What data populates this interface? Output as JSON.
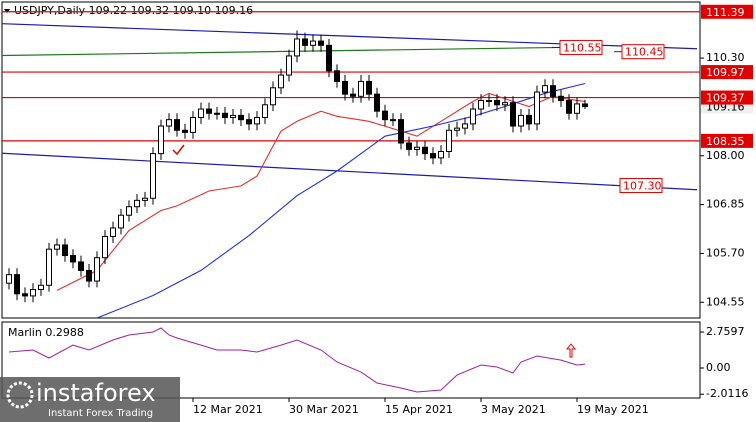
{
  "chart_data": [
    {
      "type": "candlestick",
      "title": "USDJPY,Daily  109.22 109.32 109.10 109.16",
      "categories": [
        null,
        null,
        null,
        null,
        null,
        null,
        null,
        null,
        null,
        null,
        null,
        null,
        null,
        null,
        null,
        null,
        null,
        null,
        null,
        null,
        null,
        null,
        null,
        "12 Mar 2021",
        null,
        null,
        null,
        null,
        null,
        null,
        null,
        null,
        null,
        null,
        null,
        "30 Mar 2021",
        null,
        null,
        null,
        null,
        null,
        null,
        null,
        null,
        null,
        null,
        null,
        "15 Apr 2021",
        null,
        null,
        null,
        null,
        null,
        null,
        null,
        null,
        null,
        null,
        null,
        "3 May 2021",
        null,
        null,
        null,
        null,
        null,
        null,
        null,
        null,
        null,
        null,
        null,
        "19 May 2021",
        null
      ],
      "open": [
        105.0,
        105.2,
        104.75,
        104.7,
        104.85,
        104.95,
        105.8,
        105.9,
        105.65,
        105.5,
        105.3,
        105.05,
        105.6,
        106.1,
        106.3,
        106.6,
        106.8,
        106.95,
        107.0,
        108.05,
        108.7,
        108.85,
        108.6,
        108.55,
        108.9,
        109.1,
        109.0,
        109.0,
        108.9,
        108.95,
        108.85,
        108.75,
        108.9,
        109.2,
        109.6,
        109.9,
        110.35,
        110.75,
        110.6,
        110.7,
        110.6,
        110.0,
        109.75,
        109.45,
        109.4,
        109.75,
        109.45,
        109.05,
        108.85,
        108.85,
        108.3,
        108.15,
        108.2,
        108.05,
        107.95,
        108.1,
        108.6,
        108.65,
        108.75,
        109.1,
        109.3,
        109.3,
        109.2,
        109.25,
        108.7,
        108.95,
        108.75,
        109.5,
        109.65,
        109.4,
        109.3,
        109.0,
        109.22
      ],
      "high": [
        105.35,
        105.35,
        104.9,
        105.0,
        105.1,
        105.95,
        106.05,
        106.05,
        105.8,
        105.65,
        105.45,
        105.75,
        106.25,
        106.45,
        106.75,
        106.95,
        107.1,
        107.15,
        108.2,
        108.85,
        109.0,
        109.0,
        108.75,
        109.05,
        109.25,
        109.25,
        109.15,
        109.15,
        109.1,
        109.1,
        109.0,
        109.05,
        109.35,
        109.75,
        110.05,
        110.5,
        110.95,
        110.9,
        110.85,
        110.85,
        110.75,
        110.15,
        109.9,
        109.6,
        109.9,
        109.9,
        109.6,
        109.2,
        109.0,
        109.0,
        108.45,
        108.35,
        108.35,
        108.2,
        108.25,
        108.75,
        108.8,
        108.9,
        109.25,
        109.45,
        109.45,
        109.45,
        109.4,
        109.4,
        109.1,
        109.1,
        109.65,
        109.8,
        109.8,
        109.55,
        109.45,
        109.37,
        109.32
      ],
      "low": [
        104.85,
        104.6,
        104.55,
        104.55,
        104.7,
        104.8,
        105.65,
        105.5,
        105.35,
        105.15,
        104.9,
        104.9,
        105.45,
        105.95,
        106.15,
        106.45,
        106.65,
        106.8,
        106.85,
        107.9,
        108.55,
        108.45,
        108.4,
        108.4,
        108.75,
        108.85,
        108.85,
        108.75,
        108.75,
        108.7,
        108.6,
        108.6,
        108.75,
        109.05,
        109.45,
        109.75,
        110.2,
        110.45,
        110.45,
        110.45,
        109.85,
        109.6,
        109.3,
        109.25,
        109.25,
        109.3,
        108.9,
        108.7,
        108.7,
        108.15,
        108.0,
        108.0,
        107.9,
        107.8,
        107.8,
        107.95,
        108.45,
        108.5,
        108.6,
        108.95,
        109.15,
        109.05,
        109.05,
        108.55,
        108.55,
        108.6,
        108.6,
        109.35,
        109.25,
        109.15,
        108.85,
        108.85,
        109.1
      ],
      "close": [
        105.2,
        104.75,
        104.7,
        104.85,
        104.95,
        105.8,
        105.9,
        105.65,
        105.5,
        105.3,
        105.05,
        105.6,
        106.1,
        106.3,
        106.6,
        106.8,
        106.95,
        107.0,
        108.05,
        108.7,
        108.85,
        108.6,
        108.55,
        108.9,
        109.1,
        109.0,
        109.0,
        108.9,
        108.95,
        108.85,
        108.75,
        108.9,
        109.2,
        109.6,
        109.9,
        110.35,
        110.75,
        110.6,
        110.7,
        110.6,
        110.0,
        109.75,
        109.45,
        109.4,
        109.75,
        109.45,
        109.05,
        108.85,
        108.85,
        108.3,
        108.15,
        108.2,
        108.05,
        107.95,
        108.1,
        108.6,
        108.65,
        108.75,
        109.1,
        109.3,
        109.3,
        109.2,
        109.25,
        108.7,
        108.95,
        108.75,
        109.5,
        109.65,
        109.4,
        109.3,
        109.0,
        109.22,
        109.16
      ],
      "ylim": [
        104.18,
        111.62
      ],
      "yticks": [
        104.55,
        {
          "value": 105.7,
          "label": "105.70"
        },
        106.85,
        {
          "value": 108.0,
          "label": "108.00"
        },
        {
          "value": 110.3,
          "label": "110.30"
        }
      ],
      "levels": [
        111.39,
        109.97,
        109.37,
        108.35
      ],
      "level_color": "#e00000",
      "last_price": 109.16,
      "trendlines": [
        {
          "color": "#1c1ca8",
          "x": [
            -1,
            86
          ],
          "values": [
            111.11,
            110.52
          ]
        },
        {
          "color": "#1c1ca8",
          "x": [
            -1,
            86
          ],
          "values": [
            108.06,
            107.2
          ]
        },
        {
          "color": "#1a7a1a",
          "x": [
            -1,
            69
          ],
          "values": [
            110.36,
            110.55
          ]
        }
      ],
      "moving_averages": [
        {
          "color": "#e03030",
          "x": [
            6,
            11,
            15,
            19,
            21,
            25,
            29,
            31,
            34,
            36,
            39,
            41,
            45,
            49,
            51,
            54,
            58,
            60,
            63,
            65,
            68,
            70,
            72
          ],
          "values": [
            104.83,
            105.3,
            106.24,
            106.71,
            106.82,
            107.17,
            107.29,
            107.52,
            108.58,
            108.81,
            109.05,
            108.93,
            108.81,
            108.58,
            108.46,
            108.81,
            109.28,
            109.47,
            109.28,
            109.16,
            109.4,
            109.33,
            109.28
          ]
        },
        {
          "color": "#2030e0",
          "x": [
            11,
            18,
            24,
            30,
            36,
            41,
            47,
            53,
            58,
            62,
            67,
            72
          ],
          "values": [
            104.18,
            104.71,
            105.3,
            106.12,
            107.06,
            107.64,
            108.46,
            108.7,
            108.93,
            109.16,
            109.47,
            109.7
          ]
        }
      ],
      "annotations": [
        110.55,
        110.45,
        {
          "value": 107.3,
          "label": "107.30"
        }
      ],
      "watermark": {
        "brand": "instaforex",
        "tagline": "Instant Forex Trading"
      }
    },
    {
      "type": "line",
      "title": "Marlin 0.2988",
      "x": [
        0,
        3,
        5,
        8,
        10,
        13,
        15,
        18,
        19,
        20,
        21,
        24,
        26,
        29,
        31,
        34,
        36,
        39,
        41,
        44,
        46,
        49,
        51,
        54,
        56,
        59,
        61,
        63,
        64,
        66,
        69,
        71,
        72
      ],
      "values": [
        1.23,
        1.38,
        0.77,
        1.76,
        1.38,
        2.15,
        2.53,
        2.76,
        3.07,
        2.53,
        2.3,
        1.76,
        1.38,
        1.38,
        1.23,
        1.76,
        2.15,
        1.38,
        0.46,
        -0.31,
        -1.15,
        -1.53,
        -1.84,
        -1.69,
        -0.54,
        0.23,
        0.08,
        -0.38,
        0.46,
        0.92,
        0.61,
        0.23,
        0.2988
      ],
      "color": "#a020a0",
      "ylim": [
        -2.3,
        3.53
      ],
      "yticks": [
        2.7597,
        {
          "value": 0,
          "label": "0.00"
        },
        -2.0116
      ]
    }
  ]
}
